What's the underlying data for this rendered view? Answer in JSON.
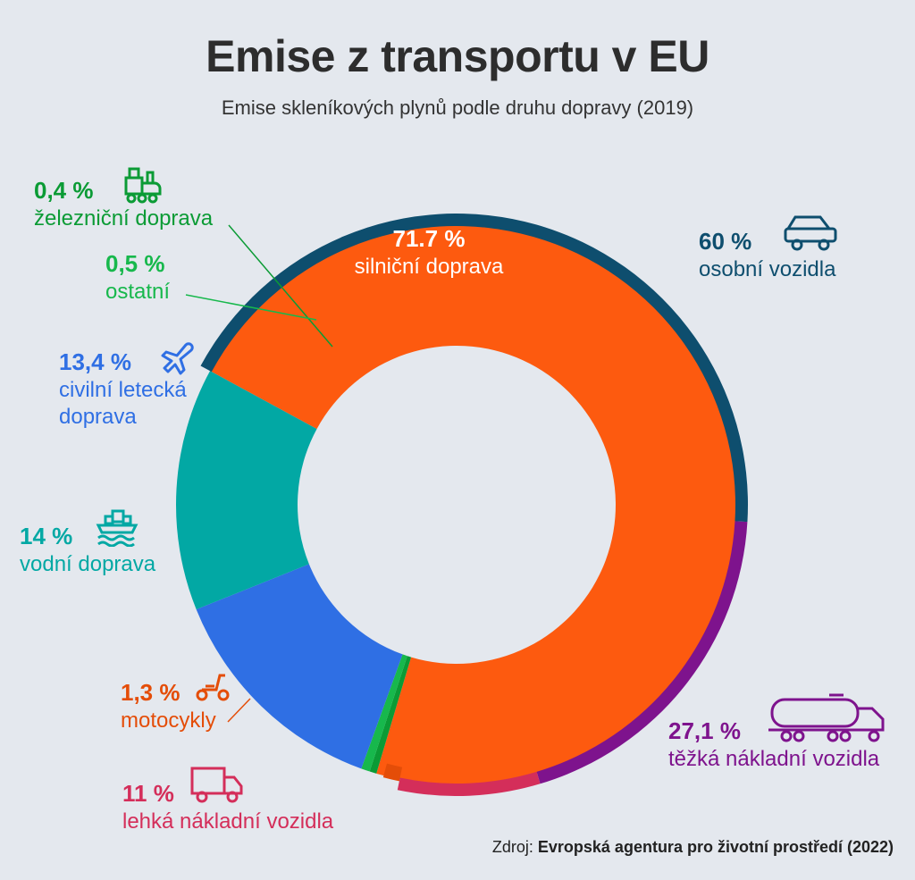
{
  "header": {
    "title": "Emise z transportu v EU",
    "subtitle": "Emise skleníkových plynů podle druhu dopravy (2019)"
  },
  "labels": {
    "rail": {
      "value": "0,4 %",
      "name": "železniční doprava"
    },
    "other": {
      "value": "0,5 %",
      "name": "ostatní"
    },
    "aviation": {
      "value": "13,4 %",
      "name_line1": "civilní letecká",
      "name_line2": "doprava"
    },
    "water": {
      "value": "14 %",
      "name": "vodní doprava"
    },
    "moto": {
      "value": "1,3 %",
      "name": "motocykly"
    },
    "light": {
      "value": "11 %",
      "name": "lehká nákladní vozidla"
    },
    "heavy": {
      "value": "27,1 %",
      "name": "těžká nákladní vozidla"
    },
    "cars": {
      "value": "60 %",
      "name": "osobní vozidla"
    },
    "road": {
      "value": "71.7 %",
      "name": "silniční doprava"
    }
  },
  "source": {
    "prefix": "Zdroj: ",
    "text": "Evropská agentura pro životní prostředí (2022)"
  },
  "colors": {
    "road": "#fd5a0f",
    "aviation": "#2f6fe4",
    "water": "#02a8a4",
    "rail": "#0b9b35",
    "other": "#17b84c",
    "cars": "#0e4e6e",
    "heavy": "#7e138d",
    "light": "#d42e5a",
    "moto": "#e44d08",
    "background": "#e4e8ee"
  },
  "chart_data": {
    "type": "pie",
    "title": "Emise z transportu v EU",
    "subtitle": "Emise skleníkových plynů podle druhu dopravy (2019)",
    "inner_ring": [
      {
        "name": "silniční doprava",
        "value": 71.7
      },
      {
        "name": "železniční doprava",
        "value": 0.4
      },
      {
        "name": "ostatní",
        "value": 0.5
      },
      {
        "name": "civilní letecká doprava",
        "value": 13.4
      },
      {
        "name": "vodní doprava",
        "value": 14
      }
    ],
    "outer_ring_road_breakdown": [
      {
        "name": "osobní vozidla",
        "value": 60
      },
      {
        "name": "těžká nákladní vozidla",
        "value": 27.1
      },
      {
        "name": "lehká nákladní vozidla",
        "value": 11
      },
      {
        "name": "motocykly",
        "value": 1.3
      }
    ]
  }
}
